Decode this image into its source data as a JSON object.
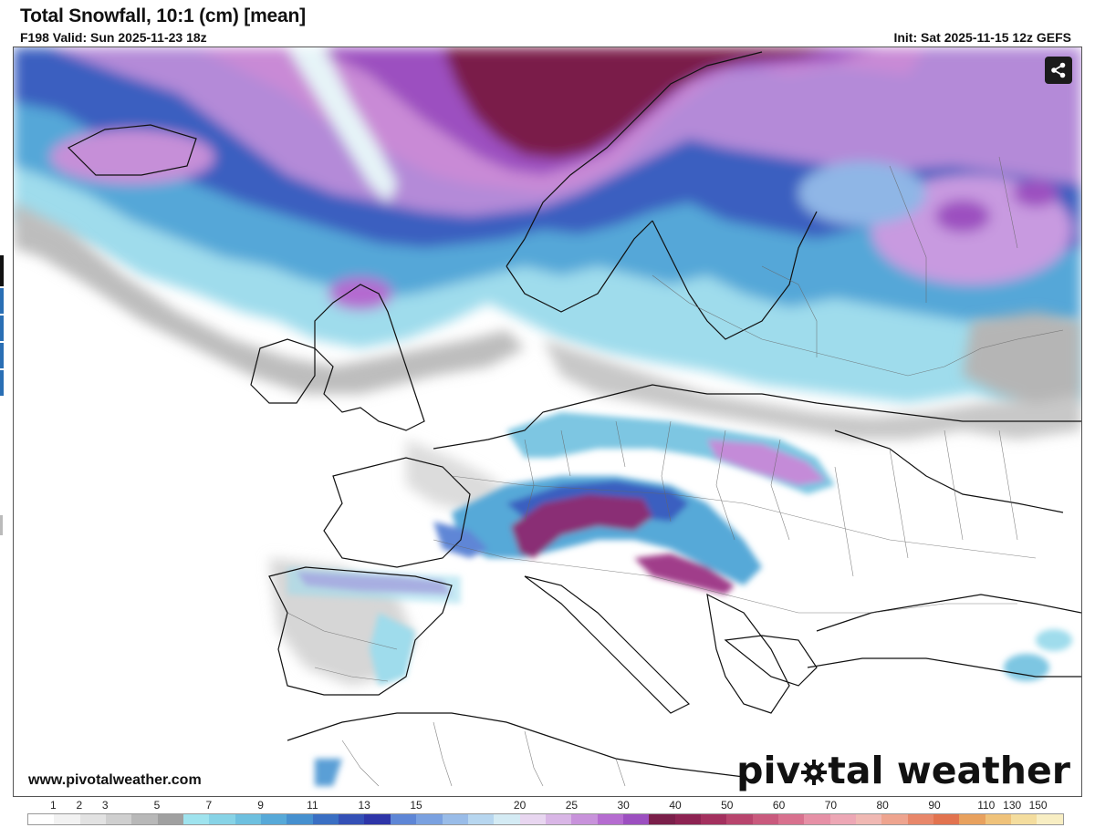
{
  "header": {
    "title": "Total Snowfall, 10:1 (cm) [mean]",
    "valid": "F198 Valid: Sun 2025-11-23 18z",
    "init": "Init: Sat 2025-11-15 12z GEFS"
  },
  "footer": {
    "website": "www.pivotalweather.com",
    "brand_left": "piv",
    "brand_right": "tal weather"
  },
  "share": {
    "icon": "share-icon"
  },
  "legend": {
    "labels": [
      "1",
      "2",
      "3",
      "5",
      "7",
      "9",
      "11",
      "13",
      "15",
      "20",
      "25",
      "30",
      "40",
      "50",
      "60",
      "70",
      "80",
      "90",
      "110",
      "130",
      "150"
    ],
    "colors": [
      "#ffffff",
      "#f2f2f2",
      "#e2e2e2",
      "#cfcfcf",
      "#b8b8b8",
      "#a0a0a0",
      "#9fe3ee",
      "#87d3e6",
      "#6ec0df",
      "#57a9d8",
      "#4690cf",
      "#3a6fc3",
      "#3450b6",
      "#2e35a8",
      "#5e86d6",
      "#7aa1e0",
      "#99bce8",
      "#b7d6ef",
      "#d4ebf4",
      "#e8d6f0",
      "#d9b6e6",
      "#c892db",
      "#b56cd0",
      "#9c4fc0",
      "#7a1f4a",
      "#8d2352",
      "#a3305e",
      "#b8456d",
      "#c95a7d",
      "#d8718e",
      "#e690a6",
      "#eda7b5",
      "#f0b8b3",
      "#eea48f",
      "#e8876a",
      "#e2734f",
      "#e8a15e",
      "#efc27a",
      "#f4dd9e",
      "#f8eec3"
    ]
  }
}
